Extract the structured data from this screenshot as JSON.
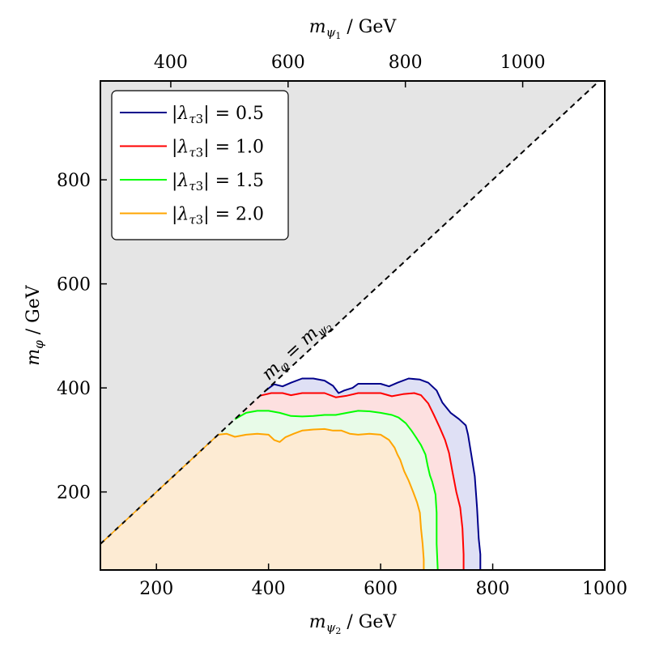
{
  "chart_data": {
    "type": "area",
    "xlabel": "m_{ψ2} / GeV",
    "ylabel": "m_φ / GeV",
    "top_xlabel": "m_{ψ1} / GeV",
    "xlim": [
      100,
      1000
    ],
    "ylim": [
      50,
      990
    ],
    "top_xlim": [
      280,
      1140
    ],
    "x_ticks": [
      200,
      400,
      600,
      800,
      1000
    ],
    "y_ticks": [
      200,
      400,
      600,
      800
    ],
    "top_x_ticks": [
      400,
      600,
      800,
      1000
    ],
    "grid": false,
    "legend_position": "top-left",
    "excluded_region": {
      "boundary_label": "m_φ = m_{ψ2}",
      "color": "#e5e5e5",
      "line_style": "dashed"
    },
    "series": [
      {
        "name": "|λ_τ3| = 0.5",
        "color": "#00008b",
        "fill": "#dfe0f5",
        "points": [
          [
            395,
            395
          ],
          [
            410,
            407
          ],
          [
            425,
            403
          ],
          [
            440,
            410
          ],
          [
            460,
            418
          ],
          [
            480,
            418
          ],
          [
            500,
            414
          ],
          [
            515,
            404
          ],
          [
            525,
            390
          ],
          [
            535,
            395
          ],
          [
            550,
            400
          ],
          [
            560,
            408
          ],
          [
            580,
            408
          ],
          [
            600,
            408
          ],
          [
            615,
            403
          ],
          [
            630,
            410
          ],
          [
            650,
            418
          ],
          [
            670,
            416
          ],
          [
            685,
            410
          ],
          [
            700,
            395
          ],
          [
            710,
            372
          ],
          [
            725,
            352
          ],
          [
            740,
            340
          ],
          [
            752,
            328
          ],
          [
            756,
            310
          ],
          [
            762,
            270
          ],
          [
            768,
            230
          ],
          [
            772,
            170
          ],
          [
            775,
            110
          ],
          [
            778,
            80
          ],
          [
            778,
            50
          ]
        ]
      },
      {
        "name": "|λ_τ3| = 1.0",
        "color": "#ff0000",
        "fill": "#fde0e0",
        "points": [
          [
            385,
            385
          ],
          [
            405,
            390
          ],
          [
            425,
            390
          ],
          [
            440,
            386
          ],
          [
            460,
            390
          ],
          [
            480,
            390
          ],
          [
            500,
            390
          ],
          [
            520,
            382
          ],
          [
            540,
            385
          ],
          [
            560,
            390
          ],
          [
            580,
            390
          ],
          [
            600,
            390
          ],
          [
            620,
            384
          ],
          [
            640,
            388
          ],
          [
            660,
            390
          ],
          [
            672,
            386
          ],
          [
            685,
            370
          ],
          [
            695,
            348
          ],
          [
            705,
            325
          ],
          [
            715,
            300
          ],
          [
            722,
            275
          ],
          [
            728,
            240
          ],
          [
            735,
            200
          ],
          [
            742,
            170
          ],
          [
            746,
            130
          ],
          [
            748,
            80
          ],
          [
            748,
            50
          ]
        ]
      },
      {
        "name": "|λ_τ3| = 1.5",
        "color": "#00ff00",
        "fill": "#e8fbe8",
        "points": [
          [
            340,
            340
          ],
          [
            360,
            352
          ],
          [
            380,
            356
          ],
          [
            400,
            356
          ],
          [
            420,
            352
          ],
          [
            440,
            346
          ],
          [
            460,
            345
          ],
          [
            480,
            346
          ],
          [
            500,
            348
          ],
          [
            520,
            348
          ],
          [
            540,
            352
          ],
          [
            560,
            356
          ],
          [
            580,
            355
          ],
          [
            600,
            352
          ],
          [
            620,
            348
          ],
          [
            632,
            343
          ],
          [
            645,
            332
          ],
          [
            655,
            318
          ],
          [
            665,
            302
          ],
          [
            672,
            290
          ],
          [
            680,
            272
          ],
          [
            684,
            250
          ],
          [
            688,
            232
          ],
          [
            692,
            220
          ],
          [
            698,
            195
          ],
          [
            700,
            160
          ],
          [
            700,
            100
          ],
          [
            702,
            50
          ]
        ]
      },
      {
        "name": "|λ_τ3| = 2.0",
        "color": "#ffa500",
        "fill": "#fdebd3",
        "points": [
          [
            310,
            310
          ],
          [
            325,
            312
          ],
          [
            340,
            306
          ],
          [
            360,
            310
          ],
          [
            380,
            312
          ],
          [
            400,
            310
          ],
          [
            410,
            300
          ],
          [
            420,
            296
          ],
          [
            430,
            305
          ],
          [
            445,
            312
          ],
          [
            460,
            318
          ],
          [
            480,
            320
          ],
          [
            500,
            321
          ],
          [
            515,
            318
          ],
          [
            530,
            318
          ],
          [
            545,
            312
          ],
          [
            560,
            310
          ],
          [
            580,
            312
          ],
          [
            600,
            310
          ],
          [
            615,
            300
          ],
          [
            625,
            285
          ],
          [
            630,
            272
          ],
          [
            635,
            262
          ],
          [
            642,
            240
          ],
          [
            650,
            222
          ],
          [
            658,
            200
          ],
          [
            665,
            180
          ],
          [
            670,
            160
          ],
          [
            672,
            130
          ],
          [
            675,
            100
          ],
          [
            677,
            70
          ],
          [
            677,
            50
          ]
        ]
      }
    ]
  }
}
